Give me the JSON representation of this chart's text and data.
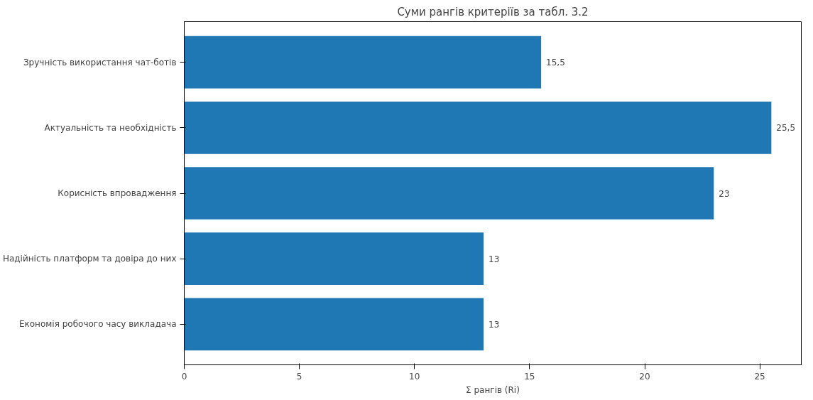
{
  "chart_data": {
    "type": "bar",
    "orientation": "horizontal",
    "title": "Суми рангів критеріїв за табл. 3.2",
    "xlabel": "Σ рангів (Ri)",
    "categories": [
      "Зручність використання чат-ботів",
      "Актуальність та необхідність",
      "Корисність впровадження",
      "Надійність платформ та довіра до них",
      "Економія робочого часу викладача"
    ],
    "values": [
      15.5,
      25.5,
      23,
      13,
      13
    ],
    "value_labels": [
      "15,5",
      "25,5",
      "23",
      "13",
      "13"
    ],
    "color": "#1f77b4",
    "xlim": [
      0,
      26.8
    ],
    "xticks": [
      0,
      5,
      10,
      15,
      20,
      25
    ],
    "grid": false
  }
}
